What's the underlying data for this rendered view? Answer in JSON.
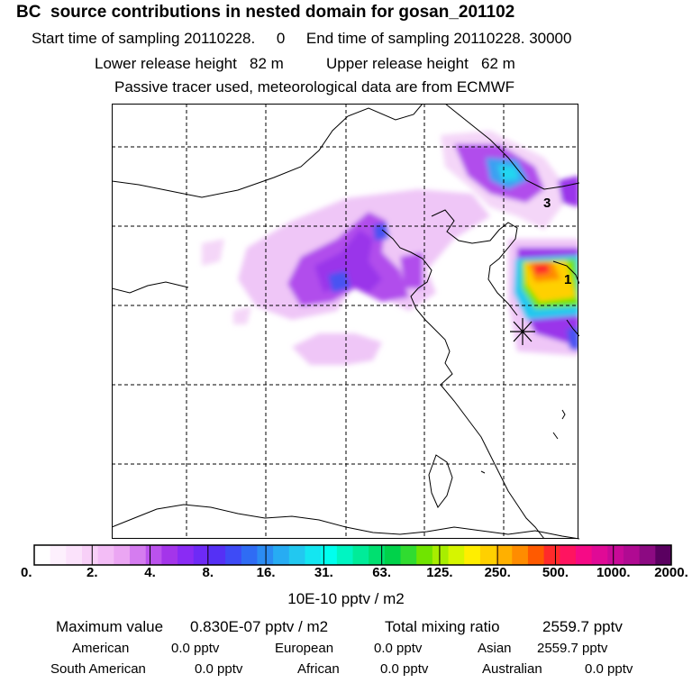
{
  "header": {
    "title": "BC  source contributions in nested domain for gosan_201102",
    "sampling": "Start time of sampling 20110228.     0     End time of sampling 20110228. 30000",
    "release": "Lower release height   82 m          Upper release height   62 m",
    "tracer": "Passive tracer used, meteorological data are from ECMWF"
  },
  "map": {
    "labels": [
      "3",
      "1"
    ],
    "station_marker": "star-marker"
  },
  "colorbar": {
    "colors": [
      "#ffffff",
      "#fdf0fd",
      "#fbe2fb",
      "#f8d0f8",
      "#f3bdf6",
      "#eba6f3",
      "#d57cf0",
      "#bb52ed",
      "#a435ea",
      "#8a2bf4",
      "#6e2af6",
      "#5530f5",
      "#3e4bf6",
      "#2f6cf4",
      "#2b8cf3",
      "#27acf3",
      "#22c8f0",
      "#14e6f1",
      "#00ffee",
      "#00f5c2",
      "#00ec99",
      "#00e070",
      "#00d24a",
      "#30dc30",
      "#70e400",
      "#a8ee00",
      "#d6f500",
      "#ffee00",
      "#ffd000",
      "#ffb000",
      "#ff8c00",
      "#ff5a00",
      "#ff2a2a",
      "#ff1460",
      "#f60a86",
      "#e00a96",
      "#c80a98",
      "#b00a92",
      "#8c0a82",
      "#5a0060"
    ],
    "ticks": [
      "0.",
      "2.",
      "4.",
      "8.",
      "16.",
      "31.",
      "63.",
      "125.",
      "250.",
      "500.",
      "1000.",
      "2000."
    ],
    "units": "10E-10 pptv / m2"
  },
  "stats": {
    "max_label": "Maximum value",
    "max_value": "0.830E-07 pptv / m2",
    "total_label": "Total mixing ratio",
    "total_value": "2559.7 pptv",
    "regions": [
      {
        "name": "American",
        "value": "0.0 pptv"
      },
      {
        "name": "European",
        "value": "0.0 pptv"
      },
      {
        "name": "Asian",
        "value": "2559.7 pptv"
      },
      {
        "name": "South American",
        "value": "0.0 pptv"
      },
      {
        "name": "African",
        "value": "0.0 pptv"
      },
      {
        "name": "Australian",
        "value": "0.0 pptv"
      }
    ]
  }
}
